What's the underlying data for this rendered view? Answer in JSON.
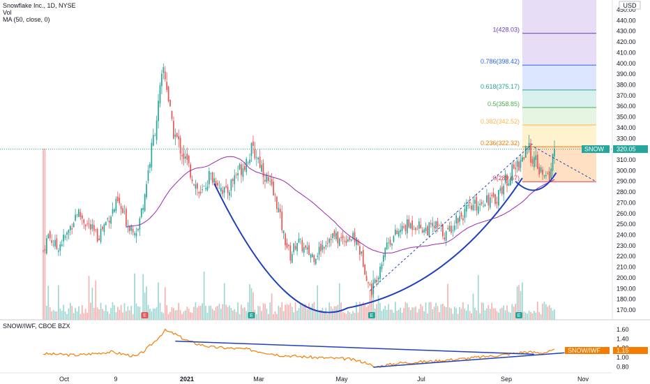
{
  "header": {
    "title": "Snowflake Inc., 1D, NYSE",
    "vol_label": "Vol",
    "ma_label": "MA (50, close, 0)",
    "currency": "USD"
  },
  "price_axis": {
    "ticks": [
      170,
      180,
      190,
      200,
      210,
      220,
      230,
      240,
      250,
      260,
      270,
      280,
      290,
      300,
      310,
      320,
      330,
      340,
      350,
      360,
      370,
      380,
      390,
      400,
      410,
      420,
      430,
      440,
      450
    ],
    "ylim": [
      165,
      455
    ]
  },
  "time_axis": {
    "labels": [
      "Oct",
      "9",
      "2021",
      "Mar",
      "May",
      "Jul",
      "Sep",
      "Nov"
    ]
  },
  "last_price": {
    "symbol": "SNOW",
    "value": "320.05",
    "color": "#26a69a"
  },
  "fib_levels": [
    {
      "label": "0(289.67)",
      "price": 289.67,
      "color": "#f23645"
    },
    {
      "label": "0.236(322.32)",
      "price": 322.32,
      "color": "#f57c00"
    },
    {
      "label": "0.382(342.52)",
      "price": 342.52,
      "color": "#ffb74d"
    },
    {
      "label": "0.5(358.85)",
      "price": 358.85,
      "color": "#4caf50"
    },
    {
      "label": "0.618(375.17)",
      "price": 375.17,
      "color": "#26a69a"
    },
    {
      "label": "0.786(398.42)",
      "price": 398.42,
      "color": "#2962ff"
    },
    {
      "label": "1(428.03)",
      "price": 428.03,
      "color": "#673ab7"
    }
  ],
  "earnings_marker": "E",
  "indicator": {
    "title": "SNOW/IWF, CBOE BZX",
    "badge_label": "SNOW/IWF",
    "badge_value": "1.15",
    "ticks": [
      "1.60",
      "1.40",
      "1.20",
      "1.00",
      "0.80"
    ],
    "tick_values": [
      1.6,
      1.4,
      1.2,
      1.0,
      0.8
    ],
    "ylim": [
      0.7,
      1.72
    ],
    "color": "#f57c00"
  },
  "colors": {
    "up": "#26a69a",
    "down": "#ef5350",
    "ma": "#9c27b0",
    "trend": "#1e3fbf"
  },
  "chart_data": {
    "type": "candlestick",
    "symbol": "SNOW",
    "close_path": [
      {
        "t": 0,
        "p": 225
      },
      {
        "t": 3,
        "p": 240
      },
      {
        "t": 8,
        "p": 228
      },
      {
        "t": 14,
        "p": 240
      },
      {
        "t": 20,
        "p": 262
      },
      {
        "t": 26,
        "p": 250
      },
      {
        "t": 32,
        "p": 238
      },
      {
        "t": 38,
        "p": 255
      },
      {
        "t": 44,
        "p": 270
      },
      {
        "t": 50,
        "p": 250
      },
      {
        "t": 56,
        "p": 245
      },
      {
        "t": 60,
        "p": 280
      },
      {
        "t": 64,
        "p": 320
      },
      {
        "t": 68,
        "p": 360
      },
      {
        "t": 71,
        "p": 395
      },
      {
        "t": 73,
        "p": 380
      },
      {
        "t": 76,
        "p": 340
      },
      {
        "t": 80,
        "p": 325
      },
      {
        "t": 84,
        "p": 310
      },
      {
        "t": 88,
        "p": 295
      },
      {
        "t": 93,
        "p": 275
      },
      {
        "t": 98,
        "p": 295
      },
      {
        "t": 103,
        "p": 290
      },
      {
        "t": 108,
        "p": 278
      },
      {
        "t": 113,
        "p": 295
      },
      {
        "t": 118,
        "p": 305
      },
      {
        "t": 123,
        "p": 318
      },
      {
        "t": 126,
        "p": 315
      },
      {
        "t": 130,
        "p": 300
      },
      {
        "t": 134,
        "p": 285
      },
      {
        "t": 138,
        "p": 270
      },
      {
        "t": 142,
        "p": 240
      },
      {
        "t": 146,
        "p": 220
      },
      {
        "t": 150,
        "p": 235
      },
      {
        "t": 155,
        "p": 225
      },
      {
        "t": 160,
        "p": 220
      },
      {
        "t": 165,
        "p": 230
      },
      {
        "t": 170,
        "p": 240
      },
      {
        "t": 175,
        "p": 235
      },
      {
        "t": 180,
        "p": 238
      },
      {
        "t": 185,
        "p": 235
      },
      {
        "t": 189,
        "p": 215
      },
      {
        "t": 192,
        "p": 195
      },
      {
        "t": 194,
        "p": 188
      },
      {
        "t": 198,
        "p": 205
      },
      {
        "t": 202,
        "p": 230
      },
      {
        "t": 208,
        "p": 240
      },
      {
        "t": 214,
        "p": 248
      },
      {
        "t": 220,
        "p": 250
      },
      {
        "t": 226,
        "p": 245
      },
      {
        "t": 232,
        "p": 248
      },
      {
        "t": 238,
        "p": 240
      },
      {
        "t": 244,
        "p": 255
      },
      {
        "t": 250,
        "p": 262
      },
      {
        "t": 256,
        "p": 268
      },
      {
        "t": 262,
        "p": 275
      },
      {
        "t": 266,
        "p": 270
      },
      {
        "t": 270,
        "p": 282
      },
      {
        "t": 275,
        "p": 295
      },
      {
        "t": 280,
        "p": 305
      },
      {
        "t": 284,
        "p": 315
      },
      {
        "t": 287,
        "p": 318
      },
      {
        "t": 290,
        "p": 310
      },
      {
        "t": 293,
        "p": 300
      },
      {
        "t": 296,
        "p": 292
      },
      {
        "t": 299,
        "p": 295
      },
      {
        "t": 302,
        "p": 320
      }
    ],
    "bars": 303,
    "moving_average": {
      "period": 50,
      "first_value": 248,
      "last_value": 300
    },
    "ratio_series": [
      {
        "t": 0,
        "v": 1.08
      },
      {
        "t": 20,
        "v": 1.05
      },
      {
        "t": 40,
        "v": 1.12
      },
      {
        "t": 55,
        "v": 1.02
      },
      {
        "t": 60,
        "v": 1.15
      },
      {
        "t": 66,
        "v": 1.35
      },
      {
        "t": 72,
        "v": 1.58
      },
      {
        "t": 78,
        "v": 1.5
      },
      {
        "t": 84,
        "v": 1.38
      },
      {
        "t": 90,
        "v": 1.3
      },
      {
        "t": 100,
        "v": 1.22
      },
      {
        "t": 120,
        "v": 1.18
      },
      {
        "t": 140,
        "v": 1.05
      },
      {
        "t": 160,
        "v": 1.0
      },
      {
        "t": 180,
        "v": 0.97
      },
      {
        "t": 192,
        "v": 0.88
      },
      {
        "t": 195,
        "v": 0.79
      },
      {
        "t": 210,
        "v": 0.88
      },
      {
        "t": 230,
        "v": 0.92
      },
      {
        "t": 250,
        "v": 0.98
      },
      {
        "t": 270,
        "v": 1.05
      },
      {
        "t": 285,
        "v": 1.12
      },
      {
        "t": 295,
        "v": 1.1
      },
      {
        "t": 302,
        "v": 1.15
      }
    ],
    "earnings_bars": [
      60,
      123,
      194,
      281
    ]
  }
}
